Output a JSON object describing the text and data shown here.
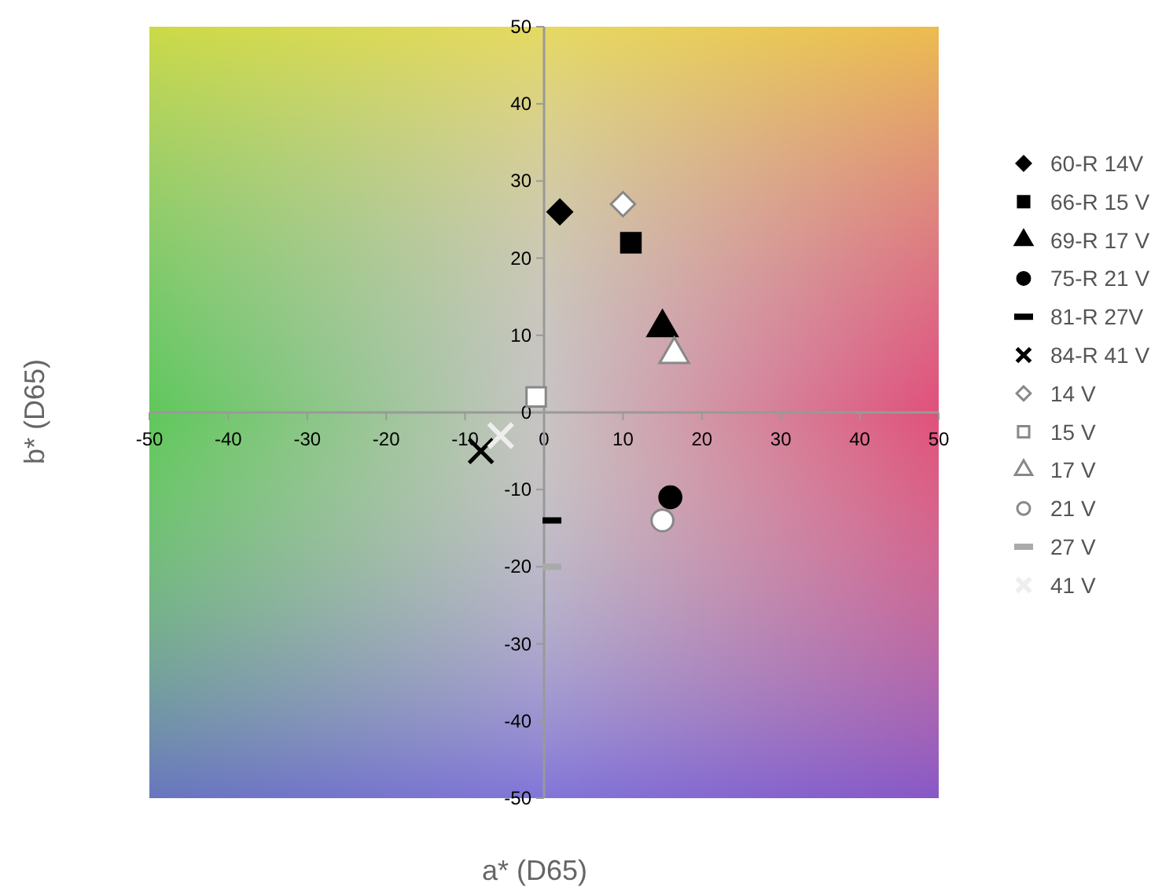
{
  "chart_data": {
    "type": "scatter",
    "xlabel": "a* (D65)",
    "ylabel": "b* (D65)",
    "xlim": [
      -50,
      50
    ],
    "ylim": [
      -50,
      50
    ],
    "xticks": [
      -50,
      -40,
      -30,
      -20,
      -10,
      0,
      10,
      20,
      30,
      40,
      50
    ],
    "yticks": [
      -50,
      -40,
      -30,
      -20,
      -10,
      0,
      10,
      20,
      30,
      40,
      50
    ],
    "grid": false,
    "legend": "right",
    "series": [
      {
        "name": "60-R 14V",
        "color": "#000000",
        "marker": "diamond",
        "x": [
          2
        ],
        "values": [
          26
        ]
      },
      {
        "name": "66-R 15 V",
        "color": "#000000",
        "marker": "square",
        "x": [
          11
        ],
        "values": [
          22
        ]
      },
      {
        "name": "69-R 17 V",
        "color": "#000000",
        "marker": "triangle",
        "x": [
          15
        ],
        "values": [
          11
        ]
      },
      {
        "name": "75-R 21 V",
        "color": "#000000",
        "marker": "circle",
        "x": [
          16
        ],
        "values": [
          -11
        ]
      },
      {
        "name": "81-R 27V",
        "color": "#000000",
        "x": [
          1
        ],
        "values": [
          -14
        ]
      },
      {
        "name": "84-R 41 V",
        "color": "#000000",
        "marker": "cross",
        "x": [
          -8
        ],
        "values": [
          -5
        ]
      },
      {
        "name": "14 V",
        "color": "#ffffff",
        "marker": "diamond",
        "x": [
          10
        ],
        "values": [
          27
        ]
      },
      {
        "name": "15 V",
        "color": "#ffffff",
        "marker": "square",
        "x": [
          -1
        ],
        "values": [
          2
        ]
      },
      {
        "name": "17 V",
        "color": "#ffffff",
        "marker": "triangle",
        "x": [
          16.5
        ],
        "values": [
          7.5
        ]
      },
      {
        "name": "21 V",
        "color": "#ffffff",
        "marker": "circle",
        "x": [
          15
        ],
        "values": [
          -14
        ]
      },
      {
        "name": "27 V",
        "color": "#aaaaaa",
        "x": [
          1
        ],
        "values": [
          -20
        ]
      },
      {
        "name": "41 V",
        "color": "#eeeeee",
        "marker": "cross",
        "x": [
          -5.5
        ],
        "values": [
          -3
        ]
      }
    ]
  }
}
